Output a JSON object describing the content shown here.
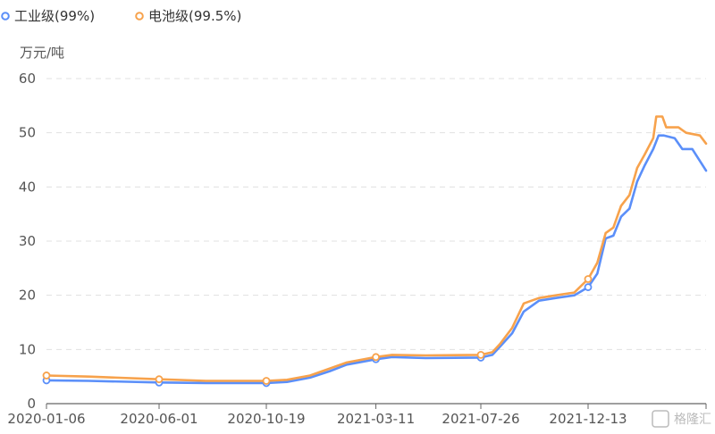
{
  "chart_data": {
    "type": "line",
    "yunit": "万元/吨",
    "ylim": [
      0,
      60
    ],
    "yticks": [
      0,
      10,
      20,
      30,
      40,
      50,
      60
    ],
    "xlim": [
      "2020-01-06",
      "2022-05-16"
    ],
    "xticks": [
      "2020-01-06",
      "2020-06-01",
      "2020-10-19",
      "2021-03-11",
      "2021-07-26",
      "2021-12-13"
    ],
    "grid": "horizontal-dashed",
    "legend_position": "top-left",
    "series": [
      {
        "name": "工业级(99%)",
        "color": "#5b8ff9",
        "points": [
          [
            "2020-01-06",
            4.3
          ],
          [
            "2020-03-01",
            4.2
          ],
          [
            "2020-06-01",
            3.9
          ],
          [
            "2020-08-01",
            3.8
          ],
          [
            "2020-10-19",
            3.8
          ],
          [
            "2020-11-15",
            4.0
          ],
          [
            "2020-12-15",
            4.8
          ],
          [
            "2021-01-10",
            6.0
          ],
          [
            "2021-02-01",
            7.2
          ],
          [
            "2021-03-11",
            8.2
          ],
          [
            "2021-04-01",
            8.6
          ],
          [
            "2021-05-15",
            8.4
          ],
          [
            "2021-07-26",
            8.5
          ],
          [
            "2021-08-10",
            9.0
          ],
          [
            "2021-08-20",
            10.5
          ],
          [
            "2021-09-05",
            13.0
          ],
          [
            "2021-09-20",
            17.0
          ],
          [
            "2021-10-10",
            19.0
          ],
          [
            "2021-11-01",
            19.5
          ],
          [
            "2021-11-25",
            20.0
          ],
          [
            "2021-12-13",
            21.5
          ],
          [
            "2021-12-25",
            24.0
          ],
          [
            "2022-01-05",
            30.5
          ],
          [
            "2022-01-15",
            31.0
          ],
          [
            "2022-01-25",
            34.5
          ],
          [
            "2022-02-05",
            36.0
          ],
          [
            "2022-02-15",
            41.0
          ],
          [
            "2022-02-25",
            44.0
          ],
          [
            "2022-03-08",
            47.0
          ],
          [
            "2022-03-15",
            49.5
          ],
          [
            "2022-03-22",
            49.5
          ],
          [
            "2022-04-05",
            49.0
          ],
          [
            "2022-04-15",
            47.0
          ],
          [
            "2022-04-28",
            47.0
          ],
          [
            "2022-05-16",
            43.0
          ]
        ]
      },
      {
        "name": "电池级(99.5%)",
        "color": "#f7a24c",
        "points": [
          [
            "2020-01-06",
            5.2
          ],
          [
            "2020-03-01",
            5.0
          ],
          [
            "2020-06-01",
            4.5
          ],
          [
            "2020-08-01",
            4.2
          ],
          [
            "2020-10-19",
            4.2
          ],
          [
            "2020-11-15",
            4.4
          ],
          [
            "2020-12-15",
            5.2
          ],
          [
            "2021-01-10",
            6.5
          ],
          [
            "2021-02-01",
            7.6
          ],
          [
            "2021-03-11",
            8.6
          ],
          [
            "2021-04-01",
            9.0
          ],
          [
            "2021-05-15",
            8.9
          ],
          [
            "2021-07-26",
            9.0
          ],
          [
            "2021-08-10",
            9.5
          ],
          [
            "2021-08-20",
            11.0
          ],
          [
            "2021-09-05",
            14.0
          ],
          [
            "2021-09-20",
            18.5
          ],
          [
            "2021-10-10",
            19.5
          ],
          [
            "2021-11-01",
            20.0
          ],
          [
            "2021-11-25",
            20.5
          ],
          [
            "2021-12-13",
            23.0
          ],
          [
            "2021-12-25",
            26.0
          ],
          [
            "2022-01-05",
            31.5
          ],
          [
            "2022-01-15",
            32.5
          ],
          [
            "2022-01-25",
            36.5
          ],
          [
            "2022-02-05",
            38.5
          ],
          [
            "2022-02-15",
            43.5
          ],
          [
            "2022-02-25",
            46.0
          ],
          [
            "2022-03-08",
            49.0
          ],
          [
            "2022-03-12",
            53.0
          ],
          [
            "2022-03-20",
            53.0
          ],
          [
            "2022-03-25",
            51.0
          ],
          [
            "2022-04-10",
            51.0
          ],
          [
            "2022-04-20",
            50.0
          ],
          [
            "2022-05-08",
            49.5
          ],
          [
            "2022-05-16",
            48.0
          ]
        ]
      }
    ],
    "markers": [
      "2020-01-06",
      "2020-06-01",
      "2020-10-19",
      "2021-03-11",
      "2021-07-26",
      "2021-12-13"
    ]
  },
  "watermark": "格隆汇"
}
